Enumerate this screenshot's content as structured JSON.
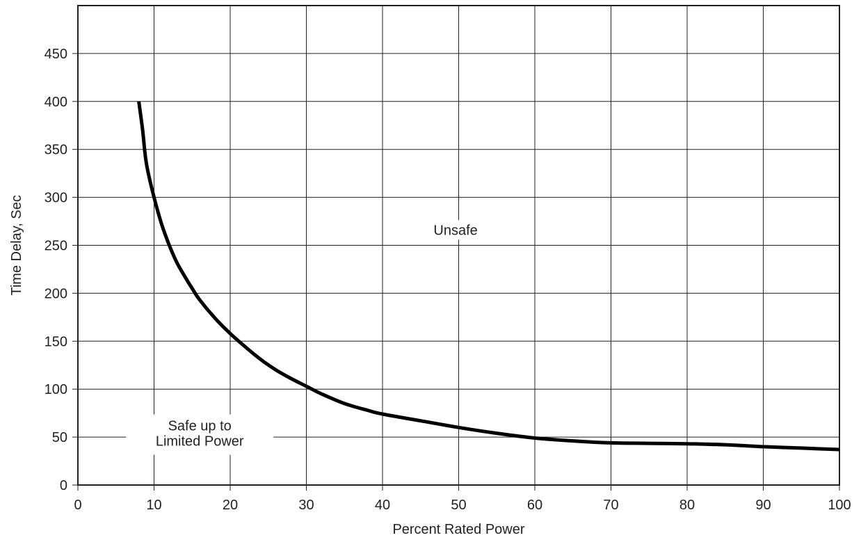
{
  "chart_data": {
    "type": "line",
    "xlabel": "Percent Rated Power",
    "ylabel": "Time Delay, Sec",
    "xlim": [
      0,
      100
    ],
    "ylim": [
      0,
      500
    ],
    "x_ticks": [
      0,
      10,
      20,
      30,
      40,
      50,
      60,
      70,
      80,
      90,
      100
    ],
    "y_ticks": [
      0,
      50,
      100,
      150,
      200,
      250,
      300,
      350,
      400,
      450
    ],
    "grid": true,
    "series": [
      {
        "color": "#000000",
        "x": [
          8.0,
          8.5,
          9.0,
          10.0,
          11.0,
          12.0,
          13.0,
          14.0,
          15.0,
          16.0,
          18.0,
          20.0,
          22.0,
          24.0,
          26.0,
          28.0,
          30.0,
          32.0,
          35.0,
          38.0,
          40.0,
          45.0,
          50.0,
          55.0,
          60.0,
          65.0,
          70.0,
          75.0,
          80.0,
          85.0,
          90.0,
          95.0,
          100.0
        ],
        "y": [
          400,
          370,
          335,
          300,
          272,
          250,
          232,
          218,
          205,
          193,
          174,
          158,
          144,
          131,
          120,
          111,
          103,
          95,
          85,
          78,
          74,
          67,
          60,
          54,
          49,
          46,
          44,
          43.5,
          43,
          42,
          40,
          38.5,
          37
        ]
      }
    ],
    "annotations": {
      "unsafe": "Unsafe",
      "safe_line1": "Safe up to",
      "safe_line2": "Limited Power"
    }
  }
}
